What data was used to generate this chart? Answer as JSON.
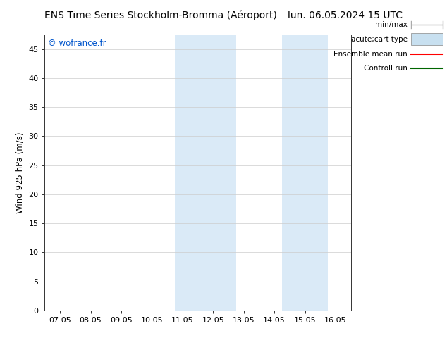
{
  "title_left": "ENS Time Series Stockholm-Bromma (Aéroport)",
  "title_right": "lun. 06.05.2024 15 UTC",
  "ylabel": "Wind 925 hPa (m/s)",
  "watermark": "© wofrance.fr",
  "watermark_color": "#0055cc",
  "xlim_left": -0.5,
  "xlim_right": 9.5,
  "ylim_bottom": 0,
  "ylim_top": 47.5,
  "yticks": [
    0,
    5,
    10,
    15,
    20,
    25,
    30,
    35,
    40,
    45
  ],
  "xtick_labels": [
    "07.05",
    "08.05",
    "09.05",
    "10.05",
    "11.05",
    "12.05",
    "13.05",
    "14.05",
    "15.05",
    "16.05"
  ],
  "shaded_regions": [
    {
      "xstart": 3.75,
      "xend": 4.25,
      "color": "#daeaf7"
    },
    {
      "xstart": 4.25,
      "xend": 5.75,
      "color": "#daeaf7"
    },
    {
      "xstart": 7.25,
      "xend": 7.75,
      "color": "#daeaf7"
    },
    {
      "xstart": 7.75,
      "xend": 8.75,
      "color": "#daeaf7"
    }
  ],
  "legend_items": [
    {
      "label": "min/max",
      "color": "#aaaaaa"
    },
    {
      "label": "acute;cart type",
      "color": "#c8e0f0"
    },
    {
      "label": "Ensemble mean run",
      "color": "#ff0000"
    },
    {
      "label": "Controll run",
      "color": "#006600"
    }
  ],
  "bg_color": "#ffffff",
  "plot_bg_color": "#ffffff",
  "grid_color": "#cccccc",
  "title_fontsize": 10,
  "tick_fontsize": 8,
  "ylabel_fontsize": 8.5,
  "legend_fontsize": 7.5
}
